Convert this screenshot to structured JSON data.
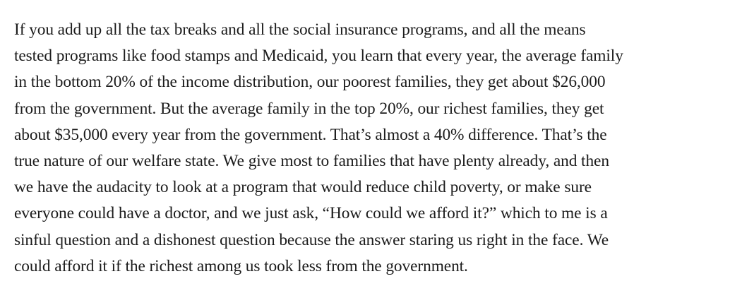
{
  "paragraph": {
    "lines": [
      "If you add up all the tax breaks and all the social insurance programs, and all the means",
      "tested programs like food stamps and Medicaid, you learn that every year, the average family",
      "in the bottom 20% of the income distribution, our poorest families, they get about $26,000",
      "from the government. But the average family in the top 20%, our richest families, they get",
      "about $35,000 every year from the government. That’s almost a 40% difference. That’s the",
      "true nature of our welfare state. We give most to families that have plenty already, and then",
      "we have the audacity to look at a program that would reduce child poverty, or make sure",
      "everyone could have a doctor, and we just ask, “How could we afford it?” which to me is a",
      "sinful question and a dishonest question because the answer staring us right in the face. We",
      "could afford it if the richest among us took less from the government."
    ]
  }
}
